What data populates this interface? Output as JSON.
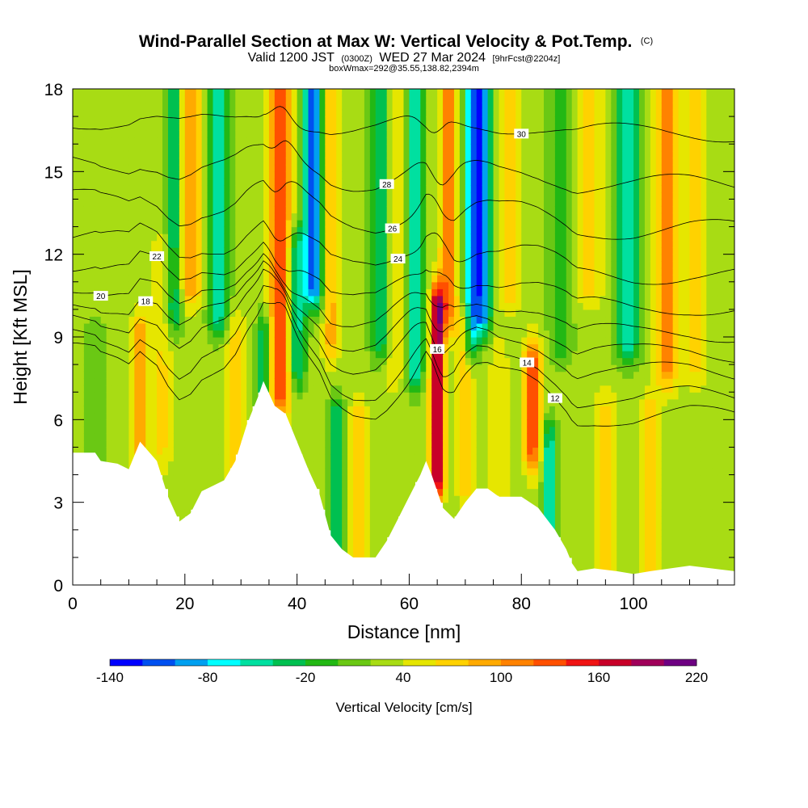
{
  "title": {
    "main": "Wind-Parallel Section at Max W: Vertical Velocity & Pot.Temp.",
    "main_tag": "(C)",
    "valid_a": "Valid 1200 JST",
    "valid_tz": "(0300Z)",
    "valid_b": "WED 27 Mar 2024",
    "valid_fcst": "[9hrFcst@2204z]",
    "box": "boxWmax=292@35.55,138.82,2394m"
  },
  "chart_data": {
    "type": "heatmap",
    "xlabel": "Distance [nm]",
    "ylabel": "Height [Kft MSL]",
    "xlim": [
      0,
      118
    ],
    "ylim": [
      0,
      18
    ],
    "x_ticks": [
      "0",
      "20",
      "40",
      "60",
      "80",
      "100"
    ],
    "x_tick_values": [
      0,
      20,
      40,
      60,
      80,
      100
    ],
    "y_ticks": [
      "0",
      "3",
      "6",
      "9",
      "12",
      "15",
      "18"
    ],
    "y_tick_values": [
      0,
      3,
      6,
      9,
      12,
      15,
      18
    ],
    "colorbar": {
      "title": "Vertical Velocity [cm/s]",
      "labels": [
        "-140",
        "-80",
        "-20",
        "40",
        "100",
        "160",
        "220"
      ],
      "label_values": [
        -140,
        -80,
        -20,
        40,
        100,
        160,
        220
      ],
      "boundaries": [
        -140,
        -120,
        -100,
        -80,
        -60,
        -40,
        -20,
        0,
        20,
        40,
        60,
        80,
        100,
        120,
        140,
        160,
        180,
        200,
        220
      ],
      "colors": [
        "#0000ff",
        "#0050f0",
        "#00a0f0",
        "#00ffff",
        "#00e0a0",
        "#00c050",
        "#22b814",
        "#6ac814",
        "#a8dc14",
        "#e6e600",
        "#ffd200",
        "#ffaa00",
        "#ff8200",
        "#ff5000",
        "#f01414",
        "#c80028",
        "#a0005a",
        "#6e0082"
      ]
    },
    "terrain_kft": [
      [
        0,
        4.8
      ],
      [
        4,
        4.8
      ],
      [
        5,
        4.5
      ],
      [
        8,
        4.4
      ],
      [
        10,
        4.2
      ],
      [
        12,
        5.2
      ],
      [
        15,
        4.5
      ],
      [
        17,
        3.2
      ],
      [
        19,
        2.3
      ],
      [
        21,
        2.6
      ],
      [
        23,
        3.4
      ],
      [
        25,
        3.6
      ],
      [
        27,
        3.8
      ],
      [
        29,
        4.5
      ],
      [
        31,
        5.8
      ],
      [
        33,
        6.8
      ],
      [
        34,
        7.4
      ],
      [
        36,
        6.5
      ],
      [
        38,
        6.2
      ],
      [
        40,
        5.2
      ],
      [
        42,
        4.2
      ],
      [
        44,
        3.3
      ],
      [
        46,
        1.8
      ],
      [
        48,
        1.3
      ],
      [
        50,
        1.0
      ],
      [
        54,
        1.0
      ],
      [
        56,
        1.6
      ],
      [
        58,
        2.4
      ],
      [
        60,
        3.2
      ],
      [
        62,
        4.0
      ],
      [
        63,
        4.5
      ],
      [
        64,
        4.0
      ],
      [
        66,
        2.8
      ],
      [
        68,
        2.4
      ],
      [
        70,
        3.0
      ],
      [
        72,
        3.5
      ],
      [
        74,
        3.5
      ],
      [
        76,
        3.2
      ],
      [
        80,
        3.2
      ],
      [
        83,
        2.8
      ],
      [
        86,
        2.0
      ],
      [
        88,
        1.3
      ],
      [
        89,
        0.8
      ],
      [
        90,
        0.5
      ],
      [
        93,
        0.6
      ],
      [
        97,
        0.5
      ],
      [
        100,
        0.4
      ],
      [
        103,
        0.5
      ],
      [
        110,
        0.7
      ],
      [
        114,
        0.6
      ],
      [
        118,
        0.5
      ]
    ],
    "velocity_features": [
      {
        "x": 4,
        "z0": 0,
        "z1": 9,
        "amp": -15,
        "w": 3
      },
      {
        "x": 12,
        "z0": 4,
        "z1": 9,
        "amp": 70,
        "w": 1.5
      },
      {
        "x": 16,
        "z0": 5,
        "z1": 12,
        "amp": 35,
        "w": 1.8
      },
      {
        "x": 18,
        "z0": 10,
        "z1": 18,
        "amp": -75,
        "w": 1.5
      },
      {
        "x": 21,
        "z0": 11,
        "z1": 18,
        "amp": 70,
        "w": 2.0
      },
      {
        "x": 26,
        "z0": 10,
        "z1": 18,
        "amp": -90,
        "w": 1.8
      },
      {
        "x": 29,
        "z0": 4,
        "z1": 9,
        "amp": 40,
        "w": 2.0
      },
      {
        "x": 34,
        "z0": 7,
        "z1": 9,
        "amp": -70,
        "w": 1.2
      },
      {
        "x": 37,
        "z0": 7,
        "z1": 18,
        "amp": 105,
        "w": 2.0
      },
      {
        "x": 40,
        "z0": 8,
        "z1": 12,
        "amp": -80,
        "w": 1.5
      },
      {
        "x": 43,
        "z0": 11,
        "z1": 18,
        "amp": -140,
        "w": 1.8
      },
      {
        "x": 46,
        "z0": 9,
        "z1": 18,
        "amp": 60,
        "w": 1.5
      },
      {
        "x": 47,
        "z0": 1,
        "z1": 6,
        "amp": -70,
        "w": 1.2
      },
      {
        "x": 51,
        "z0": 1,
        "z1": 6,
        "amp": 45,
        "w": 1.5
      },
      {
        "x": 55,
        "z0": 9,
        "z1": 18,
        "amp": -80,
        "w": 1.8
      },
      {
        "x": 57,
        "z0": 8,
        "z1": 18,
        "amp": 35,
        "w": 2.0
      },
      {
        "x": 61,
        "z0": 8,
        "z1": 18,
        "amp": -90,
        "w": 1.5
      },
      {
        "x": 65,
        "z0": 4,
        "z1": 10,
        "amp": 175,
        "w": 1.2
      },
      {
        "x": 67,
        "z0": 10,
        "z1": 18,
        "amp": 85,
        "w": 1.5
      },
      {
        "x": 70,
        "z0": 4,
        "z1": 9,
        "amp": 55,
        "w": 1.5
      },
      {
        "x": 71,
        "z0": 9,
        "z1": 18,
        "amp": -110,
        "w": 1.2
      },
      {
        "x": 73,
        "z0": 10,
        "z1": 18,
        "amp": -140,
        "w": 1.5
      },
      {
        "x": 76,
        "z0": 3,
        "z1": 8,
        "amp": 35,
        "w": 1.5
      },
      {
        "x": 78,
        "z0": 11,
        "z1": 18,
        "amp": 55,
        "w": 2.0
      },
      {
        "x": 82,
        "z0": 5,
        "z1": 8,
        "amp": 105,
        "w": 1.5
      },
      {
        "x": 85,
        "z0": 2,
        "z1": 5,
        "amp": -90,
        "w": 1.2
      },
      {
        "x": 87,
        "z0": 9,
        "z1": 18,
        "amp": -45,
        "w": 2.0
      },
      {
        "x": 92,
        "z0": 11,
        "z1": 18,
        "amp": 40,
        "w": 2.5
      },
      {
        "x": 95,
        "z0": 1,
        "z1": 6,
        "amp": 50,
        "w": 2.0
      },
      {
        "x": 99,
        "z0": 9,
        "z1": 18,
        "amp": -90,
        "w": 2.0
      },
      {
        "x": 103,
        "z0": 1,
        "z1": 6,
        "amp": 55,
        "w": 1.5
      },
      {
        "x": 106,
        "z0": 8,
        "z1": 18,
        "amp": 80,
        "w": 2.0
      },
      {
        "x": 111,
        "z0": 8,
        "z1": 18,
        "amp": 35,
        "w": 2.0
      }
    ],
    "theta_contours": [
      {
        "base": 8.0,
        "label": "12",
        "label_x": 86
      },
      {
        "base": 8.6,
        "label": "14",
        "label_x": 81
      },
      {
        "base": 9.4,
        "label": "16",
        "label_x": 65
      },
      {
        "base": 10.0,
        "label": "18",
        "label_x": 13
      },
      {
        "base": 10.6,
        "label": "20",
        "label_x": 5
      },
      {
        "base": 11.4,
        "label": "22",
        "label_x": 15
      },
      {
        "base": 12.4,
        "label": "24",
        "label_x": 58
      },
      {
        "base": 13.8,
        "label": "26",
        "label_x": 57
      },
      {
        "base": 15.2,
        "label": "28",
        "label_x": 56
      },
      {
        "base": 16.8,
        "label": "30",
        "label_x": 80
      }
    ]
  }
}
